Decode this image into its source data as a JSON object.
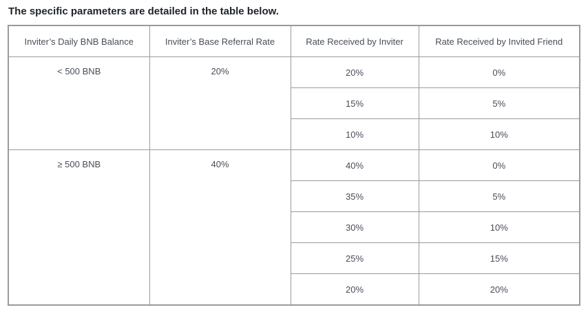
{
  "heading": "The specific parameters are detailed in the table below.",
  "table": {
    "headers": [
      "Inviter’s Daily BNB Balance",
      "Inviter’s Base Referral Rate",
      "Rate Received by Inviter",
      "Rate Received by Invited Friend"
    ],
    "groups": [
      {
        "balance": "< 500 BNB",
        "base_rate": "20%",
        "rows": [
          {
            "inviter": "20%",
            "friend": "0%"
          },
          {
            "inviter": "15%",
            "friend": "5%"
          },
          {
            "inviter": "10%",
            "friend": "10%"
          }
        ]
      },
      {
        "balance": "≥ 500 BNB",
        "base_rate": "40%",
        "rows": [
          {
            "inviter": "40%",
            "friend": "0%"
          },
          {
            "inviter": "35%",
            "friend": "5%"
          },
          {
            "inviter": "30%",
            "friend": "10%"
          },
          {
            "inviter": "25%",
            "friend": "15%"
          },
          {
            "inviter": "20%",
            "friend": "20%"
          }
        ]
      }
    ]
  }
}
